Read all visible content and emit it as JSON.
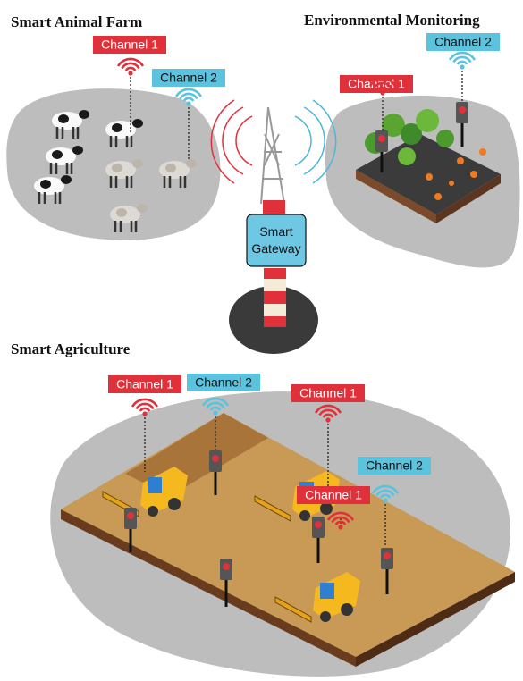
{
  "sections": [
    {
      "title": "Smart Animal Farm",
      "channels": [
        "Channel 1",
        "Channel 2"
      ]
    },
    {
      "title": "Environmental Monitoring",
      "channels": [
        "Channel 1",
        "Channel 2"
      ]
    },
    {
      "title": "Smart Agriculture",
      "channels": [
        "Channel 1",
        "Channel 2",
        "Channel 1",
        "Channel 2",
        "Channel 1"
      ]
    }
  ],
  "gateway": {
    "label": [
      "Smart",
      "Gateway"
    ]
  }
}
